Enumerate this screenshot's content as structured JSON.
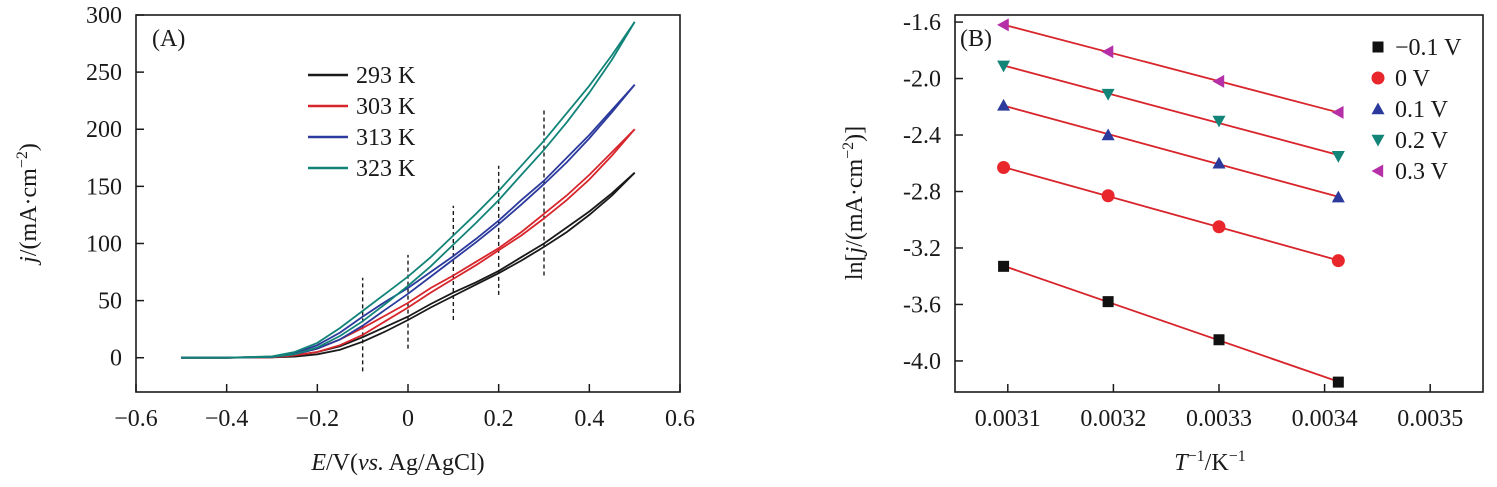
{
  "chart_data": [
    {
      "panel": "A",
      "type": "line",
      "panel_label": "(A)",
      "xlabel": {
        "var": "E",
        "rest": "/V(",
        "italic": "vs.",
        "tail": " Ag/AgCl)"
      },
      "ylabel": {
        "var": "j",
        "rest": "/(mA·cm",
        "sup": "−2",
        "tail": ")"
      },
      "xlim": [
        -0.6,
        0.6
      ],
      "ylim": [
        -30,
        300
      ],
      "xticks": [
        -0.6,
        -0.4,
        -0.2,
        0,
        0.2,
        0.4,
        0.6
      ],
      "xtick_labels": [
        "−0.6",
        "−0.4",
        "−0.2",
        "0",
        "0.2",
        "0.4",
        "0.6"
      ],
      "yticks": [
        0,
        50,
        100,
        150,
        200,
        250,
        300
      ],
      "ytick_labels": [
        "0",
        "50",
        "100",
        "150",
        "200",
        "250",
        "300"
      ],
      "dashed_markers": [
        {
          "x": -0.1,
          "y_range": [
            -12,
            70
          ]
        },
        {
          "x": 0.0,
          "y_range": [
            8,
            90
          ]
        },
        {
          "x": 0.1,
          "y_range": [
            33,
            133
          ]
        },
        {
          "x": 0.2,
          "y_range": [
            55,
            168
          ]
        },
        {
          "x": 0.3,
          "y_range": [
            72,
            218
          ]
        }
      ],
      "legend_position": "top-center",
      "series": [
        {
          "name": "293 K",
          "color": "#1a1a1a",
          "x": [
            -0.5,
            -0.4,
            -0.3,
            -0.25,
            -0.2,
            -0.15,
            -0.1,
            -0.05,
            0.0,
            0.05,
            0.1,
            0.15,
            0.2,
            0.25,
            0.3,
            0.35,
            0.4,
            0.45,
            0.5
          ],
          "y": [
            0,
            0,
            0.5,
            2,
            5,
            10,
            18,
            27,
            36,
            47,
            57,
            66,
            76,
            88,
            100,
            114,
            128,
            144,
            162
          ],
          "y_return": [
            0,
            0,
            0.3,
            1,
            3,
            7,
            14,
            23,
            33,
            44,
            54,
            64,
            74,
            85,
            97,
            110,
            125,
            142,
            162
          ]
        },
        {
          "name": "303 K",
          "color": "#d7252b",
          "x": [
            -0.5,
            -0.4,
            -0.3,
            -0.25,
            -0.2,
            -0.15,
            -0.1,
            -0.05,
            0.0,
            0.05,
            0.1,
            0.15,
            0.2,
            0.25,
            0.3,
            0.35,
            0.4,
            0.45,
            0.5
          ],
          "y": [
            0,
            0,
            0.7,
            3,
            8,
            16,
            26,
            37,
            48,
            61,
            72,
            84,
            96,
            110,
            126,
            142,
            160,
            180,
            200
          ],
          "y_return": [
            0,
            0,
            0.4,
            2,
            5,
            11,
            20,
            32,
            44,
            57,
            69,
            81,
            94,
            107,
            122,
            138,
            156,
            177,
            200
          ]
        },
        {
          "name": "313 K",
          "color": "#2b3a9c",
          "x": [
            -0.5,
            -0.4,
            -0.3,
            -0.25,
            -0.2,
            -0.15,
            -0.1,
            -0.05,
            0.0,
            0.05,
            0.1,
            0.15,
            0.2,
            0.25,
            0.3,
            0.35,
            0.4,
            0.45,
            0.5
          ],
          "y": [
            0,
            0,
            1,
            4,
            11,
            22,
            36,
            49,
            61,
            75,
            89,
            104,
            120,
            138,
            155,
            175,
            195,
            217,
            239
          ],
          "y_return": [
            0,
            0,
            0.6,
            3,
            8,
            16,
            28,
            42,
            56,
            71,
            86,
            101,
            117,
            134,
            152,
            171,
            192,
            215,
            239
          ]
        },
        {
          "name": "323 K",
          "color": "#128378",
          "x": [
            -0.5,
            -0.4,
            -0.3,
            -0.25,
            -0.2,
            -0.15,
            -0.1,
            -0.05,
            0.0,
            0.05,
            0.1,
            0.15,
            0.2,
            0.25,
            0.3,
            0.35,
            0.4,
            0.45,
            0.5
          ],
          "y": [
            0,
            0,
            1.2,
            5,
            13,
            26,
            41,
            56,
            71,
            88,
            107,
            126,
            146,
            168,
            190,
            214,
            238,
            265,
            294
          ],
          "y_return": [
            0,
            0,
            0.7,
            3,
            9,
            19,
            32,
            47,
            63,
            80,
            99,
            118,
            138,
            160,
            182,
            206,
            232,
            261,
            294
          ]
        }
      ]
    },
    {
      "panel": "B",
      "type": "scatter",
      "panel_label": "(B)",
      "xlabel": {
        "var": "T",
        "sup1": "−1",
        "rest": "/K",
        "sup2": "−1"
      },
      "ylabel": {
        "text": "ln[",
        "var": "j",
        "rest": "/(mA·cm",
        "sup": "−2",
        "tail": ")]"
      },
      "xlim": [
        0.00305,
        0.00355
      ],
      "ylim": [
        -4.22,
        -1.55
      ],
      "xticks": [
        0.0031,
        0.0032,
        0.0033,
        0.0034,
        0.0035
      ],
      "xtick_labels": [
        "0.0031",
        "0.0032",
        "0.0033",
        "0.0034",
        "0.0035"
      ],
      "yticks": [
        -4.0,
        -3.6,
        -3.2,
        -2.8,
        -2.4,
        -2.0,
        -1.6
      ],
      "ytick_labels": [
        "-4.0",
        "-3.6",
        "-3.2",
        "-2.8",
        "-2.4",
        "-2.0",
        "-1.6"
      ],
      "fit_color": "#d7252b",
      "legend_position": "right",
      "x": [
        0.003096,
        0.003195,
        0.0033,
        0.003413
      ],
      "series": [
        {
          "name": "−0.1 V",
          "marker": "square",
          "color": "#111111",
          "y": [
            -3.33,
            -3.58,
            -3.85,
            -4.15
          ]
        },
        {
          "name": "0 V",
          "marker": "circle",
          "color": "#e8262b",
          "y": [
            -2.63,
            -2.83,
            -3.05,
            -3.29
          ]
        },
        {
          "name": "0.1 V",
          "marker": "triangle-up",
          "color": "#2b3a9c",
          "y": [
            -2.19,
            -2.4,
            -2.6,
            -2.84
          ]
        },
        {
          "name": "0.2 V",
          "marker": "triangle-down",
          "color": "#138478",
          "y": [
            -1.91,
            -2.11,
            -2.3,
            -2.55
          ]
        },
        {
          "name": "0.3 V",
          "marker": "triangle-left",
          "color": "#b52fa7",
          "y": [
            -1.62,
            -1.81,
            -2.02,
            -2.24
          ]
        }
      ]
    }
  ]
}
